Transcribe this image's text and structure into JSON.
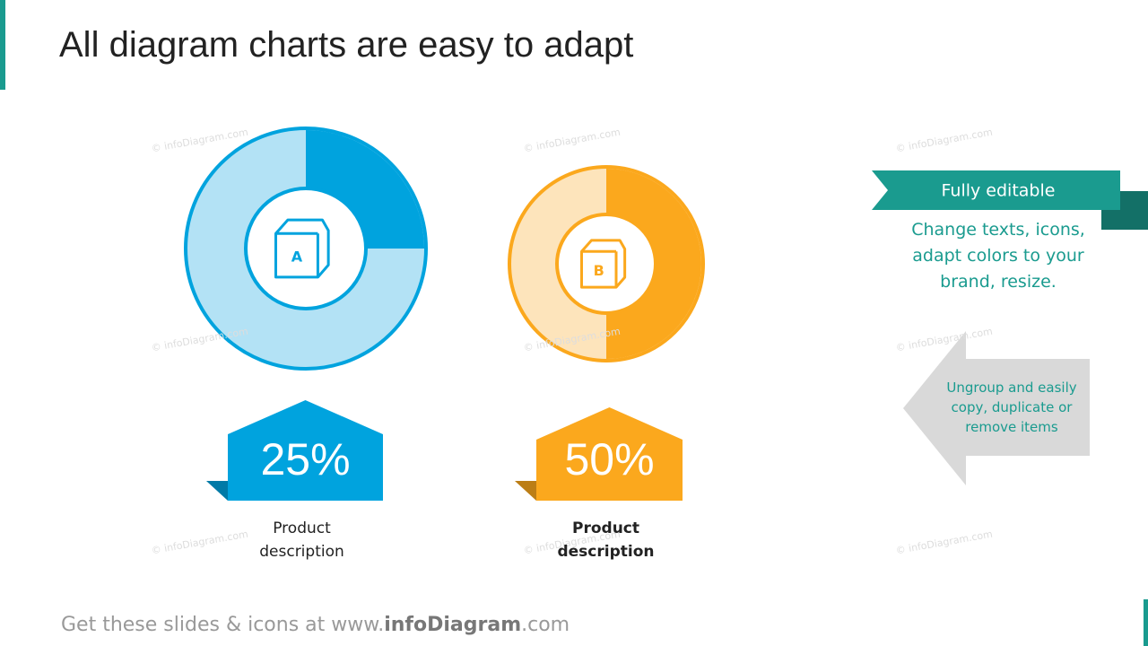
{
  "title": "All diagram charts are easy to adapt",
  "chart_data": [
    {
      "type": "donut",
      "label": "A",
      "values": [
        25
      ],
      "value_labels": [
        "25%"
      ],
      "color": "#00a3de",
      "track_color": "#b3e2f5",
      "description": "Product description",
      "description_bold": false
    },
    {
      "type": "donut",
      "label": "B",
      "values": [
        50
      ],
      "value_labels": [
        "50%"
      ],
      "color": "#fba81d",
      "track_color": "#fde4bb",
      "description": "Product description",
      "description_bold": true
    }
  ],
  "side": {
    "tag": "Fully editable",
    "text": "Change texts, icons, adapt colors to your brand, resize.",
    "arrow_text": "Ungroup and easily copy, duplicate or remove items"
  },
  "footer": {
    "prefix": "Get these slides & icons at www.",
    "brand": "infoDiagram",
    "suffix": ".com"
  },
  "watermark": "© infoDiagram.com"
}
